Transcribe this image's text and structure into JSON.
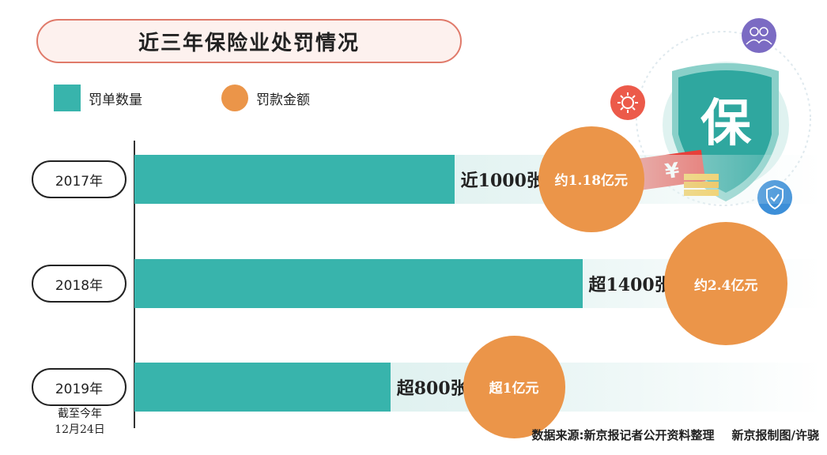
{
  "title": "近三年保险业处罚情况",
  "legend": {
    "count_label": "罚单数量",
    "amount_label": "罚款金额"
  },
  "colors": {
    "count": "#38b4ac",
    "amount": "#eb9549",
    "track": "#d2ecea"
  },
  "chart_data": {
    "type": "bar",
    "orientation": "horizontal",
    "categories": [
      "2017年",
      "2018年",
      "2019年"
    ],
    "series": [
      {
        "name": "罚单数量",
        "values": [
          1000,
          1400,
          800
        ],
        "labels": [
          "近1000张",
          "超1400张",
          "超800张"
        ]
      },
      {
        "name": "罚款金额",
        "values": [
          1.18,
          2.4,
          1
        ],
        "labels": [
          "约1.18亿元",
          "约2.4亿元",
          "超1亿元"
        ]
      }
    ],
    "xlim": [
      0,
      2150
    ]
  },
  "footnote": {
    "line1": "截至今年",
    "line2": "12月24日"
  },
  "source": "数据来源:新京报记者公开资料整理",
  "credit": "新京报制图/许骁",
  "decoration": {
    "icon_char": "保",
    "currency": "¥",
    "icons": [
      "shield-badge-icon",
      "people-icon",
      "sun-icon",
      "shield-check-icon",
      "money-icon"
    ]
  }
}
